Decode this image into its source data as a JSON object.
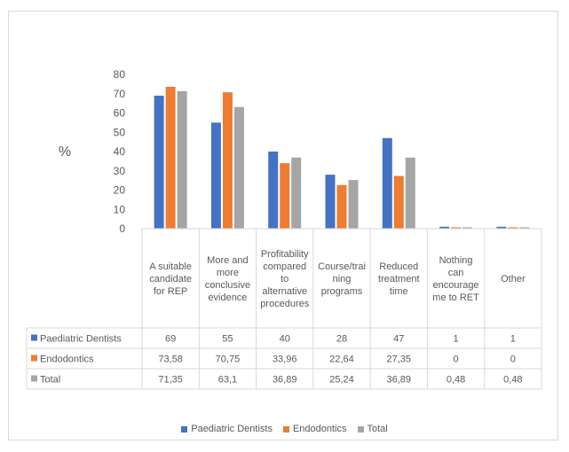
{
  "chart_data": {
    "type": "bar",
    "ylabel": "%",
    "ylim": [
      0,
      80
    ],
    "yticks": [
      0,
      10,
      20,
      30,
      40,
      50,
      60,
      70,
      80
    ],
    "categories": [
      [
        "A suitable",
        "candidate",
        "for REP"
      ],
      [
        "More and",
        "more",
        "conclusive",
        "evidence"
      ],
      [
        "Profitability",
        "compared",
        "to",
        "alternative",
        "procedures"
      ],
      [
        "Course/trai",
        "ning",
        "programs"
      ],
      [
        "Reduced",
        "treatment",
        "time"
      ],
      [
        "Nothing",
        "can",
        "encourage",
        "me to RET"
      ],
      [
        "Other"
      ]
    ],
    "series": [
      {
        "name": "Paediatric Dentists",
        "color": "#4472c4",
        "values": [
          69,
          55,
          40,
          28,
          47,
          1,
          1
        ],
        "labels": [
          "69",
          "55",
          "40",
          "28",
          "47",
          "1",
          "1"
        ]
      },
      {
        "name": "Endodontics",
        "color": "#ed7d31",
        "values": [
          73.58,
          70.75,
          33.96,
          22.64,
          27.35,
          0,
          0
        ],
        "labels": [
          "73,58",
          "70,75",
          "33,96",
          "22,64",
          "27,35",
          "0",
          "0"
        ]
      },
      {
        "name": "Total",
        "color": "#a5a5a5",
        "values": [
          71.35,
          63.1,
          36.89,
          25.24,
          36.89,
          0.48,
          0.48
        ],
        "labels": [
          "71,35",
          "63,1",
          "36,89",
          "25,24",
          "36,89",
          "0,48",
          "0,48"
        ]
      }
    ],
    "legend_position": "bottom",
    "data_table": true,
    "grid": false
  }
}
